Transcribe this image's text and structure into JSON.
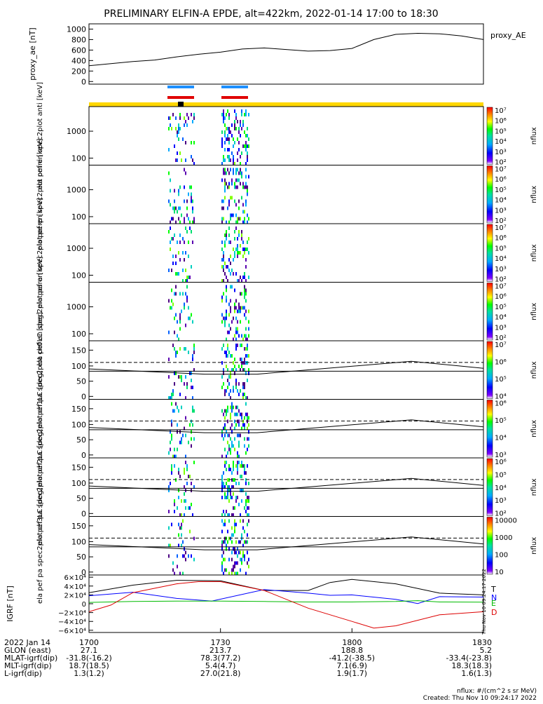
{
  "title": "PRELIMINARY ELFIN-A EPDE, alt=422km, 2022-01-14 17:00 to 18:30",
  "colors": {
    "bar_yellow": "#ffd700",
    "bar_blue": "#1e90ff",
    "bar_red": "#e00000",
    "trace_T": "#000000",
    "trace_N": "#0000ff",
    "trace_E": "#00bb00",
    "trace_D": "#dd0000"
  },
  "chart_data": [
    {
      "type": "line",
      "id": "proxy_ae",
      "ylabel": "proxy_ae [nT]",
      "legend": "proxy_AE",
      "yticks": [
        "1000",
        "800",
        "600",
        "400",
        "200",
        "0"
      ],
      "ylim": [
        -50,
        1100
      ],
      "x": [
        0,
        5,
        10,
        15,
        20,
        25,
        30,
        35,
        40,
        45,
        50,
        55,
        60,
        65,
        70,
        75,
        80,
        85,
        90
      ],
      "values": [
        300,
        340,
        380,
        410,
        470,
        520,
        560,
        620,
        640,
        610,
        580,
        590,
        630,
        800,
        900,
        920,
        910,
        870,
        800
      ]
    },
    {
      "type": "heatmap",
      "id": "energy_panels",
      "panels": [
        {
          "ylabel": "ela pef en spec2plot anti [keV]"
        },
        {
          "ylabel": "ela pef en spec2plot omni [keV]"
        },
        {
          "ylabel": "ela pef en spec2plot perp [keV]"
        },
        {
          "ylabel": "ela pef en spec2plot para [keV]"
        }
      ],
      "yticks": [
        "1000",
        "100"
      ],
      "colorbar_ticks": [
        "10⁷",
        "10⁶",
        "10⁵",
        "10⁴",
        "10³",
        "10²"
      ],
      "colorbar_label": "nflux"
    },
    {
      "type": "heatmap",
      "id": "pitch_panels",
      "panels": [
        {
          "ylabel": "ela pef pa spec2plot ch0LC [deg]",
          "cbticks": [
            "10⁷",
            "10⁶",
            "10⁵",
            "10⁴"
          ]
        },
        {
          "ylabel": "ela pef pa spec2plot ch1LC [deg]",
          "cbticks": [
            "10⁶",
            "10⁵",
            "10⁴",
            "10³"
          ]
        },
        {
          "ylabel": "ela pef pa spec2plot ch2LC [deg]",
          "cbticks": [
            "10⁶",
            "10⁵",
            "10⁴",
            "10³",
            "10²"
          ]
        },
        {
          "ylabel": "ela pef pa spec2plot ch3LC [deg]",
          "cbticks": [
            "10000",
            "1000",
            "100",
            "10"
          ]
        }
      ],
      "yticks": [
        "150",
        "100",
        "50",
        "0"
      ],
      "colorbar_label": "nflux"
    },
    {
      "type": "line",
      "id": "igrf",
      "ylabel": "IGRF [nT]",
      "yticks": [
        "6×10⁴",
        "4×10⁴",
        "2×10⁴",
        "0",
        "−2×10⁴",
        "−4×10⁴",
        "−6×10⁴"
      ],
      "ylim": [
        -65000,
        65000
      ],
      "series": [
        {
          "name": "T",
          "x": [
            0,
            10,
            20,
            30,
            40,
            50,
            55,
            60,
            70,
            80,
            90
          ],
          "values": [
            25000,
            42000,
            53000,
            52000,
            30000,
            30000,
            48000,
            55000,
            45000,
            24000,
            20000
          ]
        },
        {
          "name": "N",
          "x": [
            0,
            10,
            20,
            28,
            40,
            50,
            55,
            60,
            70,
            75,
            80,
            90
          ],
          "values": [
            18000,
            26000,
            12000,
            6000,
            32000,
            24000,
            19000,
            20000,
            10000,
            500,
            16000,
            15000
          ]
        },
        {
          "name": "E",
          "x": [
            0,
            10,
            20,
            30,
            40,
            50,
            60,
            70,
            75,
            80,
            90
          ],
          "values": [
            3000,
            5000,
            6000,
            6000,
            5000,
            4000,
            4000,
            5000,
            7000,
            4000,
            3500
          ]
        },
        {
          "name": "D",
          "x": [
            0,
            5,
            10,
            20,
            25,
            30,
            40,
            50,
            60,
            65,
            70,
            80,
            90
          ],
          "values": [
            -18000,
            -3000,
            25000,
            45000,
            50000,
            50000,
            30000,
            -10000,
            -40000,
            -55000,
            -50000,
            -25000,
            -18000
          ]
        }
      ]
    }
  ],
  "x_axis": {
    "ticks": [
      "1700",
      "1730",
      "1800",
      "1830"
    ],
    "rows": [
      {
        "label": "2022 Jan 14",
        "values": [
          "1700",
          "1730",
          "1800",
          "1830"
        ]
      },
      {
        "label": "GLON (east)",
        "values": [
          "27.1",
          "213.7",
          "188.8",
          "5.2"
        ]
      },
      {
        "label": "MLAT-igrf(dip)",
        "values": [
          "-31.8(-16.2)",
          "78.3(77.2)",
          "-41.2(-38.5)",
          "-33.4(-23.8)"
        ]
      },
      {
        "label": "MLT-igrf(dip)",
        "values": [
          "18.7(18.5)",
          "5.4(4.7)",
          "7.1(6.9)",
          "18.3(18.3)"
        ]
      },
      {
        "label": "L-igrf(dip)",
        "values": [
          "1.3(1.2)",
          "27.0(21.8)",
          "1.9(1.7)",
          "1.6(1.3)"
        ]
      }
    ]
  },
  "footer": {
    "units": "nflux: #/(cm^2 s sr MeV)",
    "created": "Created: Thu Nov 10 09:24:17 2022",
    "side_stamp": "Thu Nov 10 09:24:17 2022"
  }
}
